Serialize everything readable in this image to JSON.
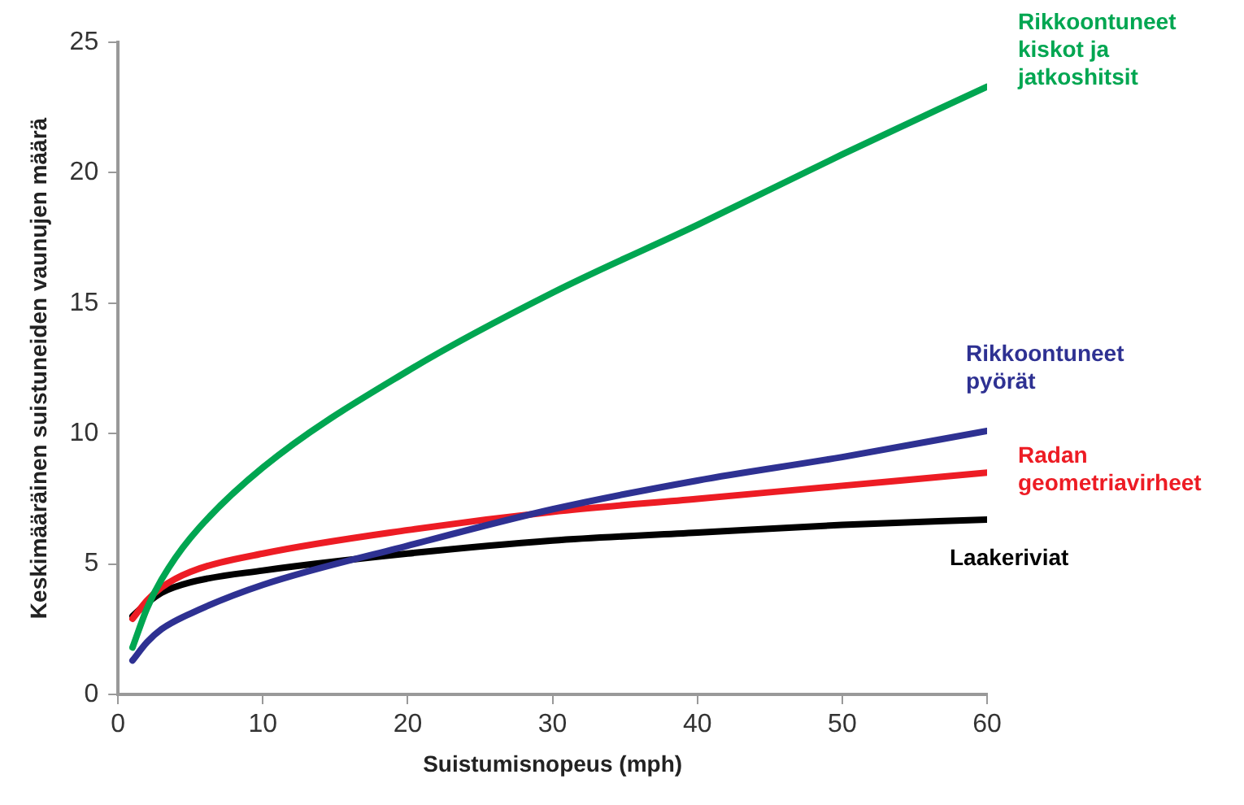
{
  "chart_data": {
    "type": "line",
    "xlabel": "Suistumisnopeus (mph)",
    "ylabel": "Keskimääräinen suistuneiden vaunujen määrä",
    "x": [
      1,
      2,
      3,
      5,
      10,
      20,
      30,
      40,
      50,
      60
    ],
    "series": [
      {
        "name": "Rikkoontuneet kiskot ja jatkoshitsit",
        "color": "#00a651",
        "values": [
          1.8,
          3.3,
          4.4,
          6.0,
          8.7,
          12.4,
          15.4,
          18.0,
          20.7,
          23.3
        ]
      },
      {
        "name": "Rikkoontuneet pyörät",
        "color": "#2e3192",
        "values": [
          1.3,
          2.0,
          2.5,
          3.1,
          4.2,
          5.7,
          7.1,
          8.2,
          9.1,
          10.1
        ]
      },
      {
        "name": "Radan geometriavirheet",
        "color": "#ed1c24",
        "values": [
          2.9,
          3.6,
          4.1,
          4.7,
          5.4,
          6.3,
          7.0,
          7.5,
          8.0,
          8.5
        ]
      },
      {
        "name": "Laakeriviat",
        "color": "#000000",
        "values": [
          3.0,
          3.5,
          3.9,
          4.3,
          4.75,
          5.4,
          5.9,
          6.2,
          6.5,
          6.7
        ]
      }
    ],
    "xlim": [
      0,
      60
    ],
    "xticks": [
      0,
      10,
      20,
      30,
      40,
      50,
      60
    ],
    "ylim": [
      0,
      25
    ],
    "yticks": [
      0,
      5,
      10,
      15,
      20,
      25
    ],
    "grid": false,
    "legend": false,
    "marker": "none",
    "line_style": "solid"
  }
}
